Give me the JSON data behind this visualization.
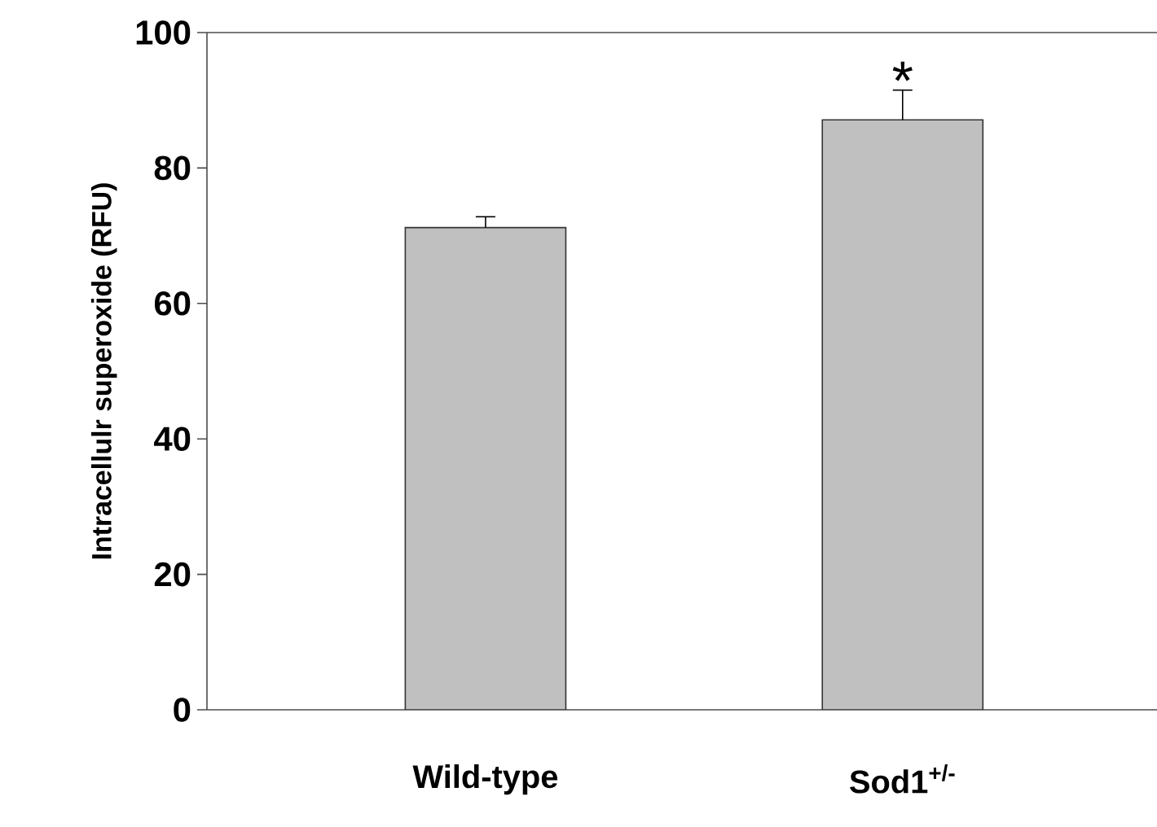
{
  "chart_data": {
    "type": "bar",
    "ylabel": "Intracellulr superoxide (RFU)",
    "categories": [
      "Wild-type",
      "Sod1$^{+/-}$"
    ],
    "values": [
      71.2,
      87.1
    ],
    "errors": [
      1.6,
      4.4
    ],
    "color": "#c0c0c0",
    "ylim": [
      0,
      100
    ],
    "yticks": [
      0,
      20,
      40,
      60,
      80,
      100
    ],
    "annotations": [
      {
        "text": "*",
        "x": "Sod1$^{+/-}$",
        "y": 91.5
      }
    ]
  }
}
